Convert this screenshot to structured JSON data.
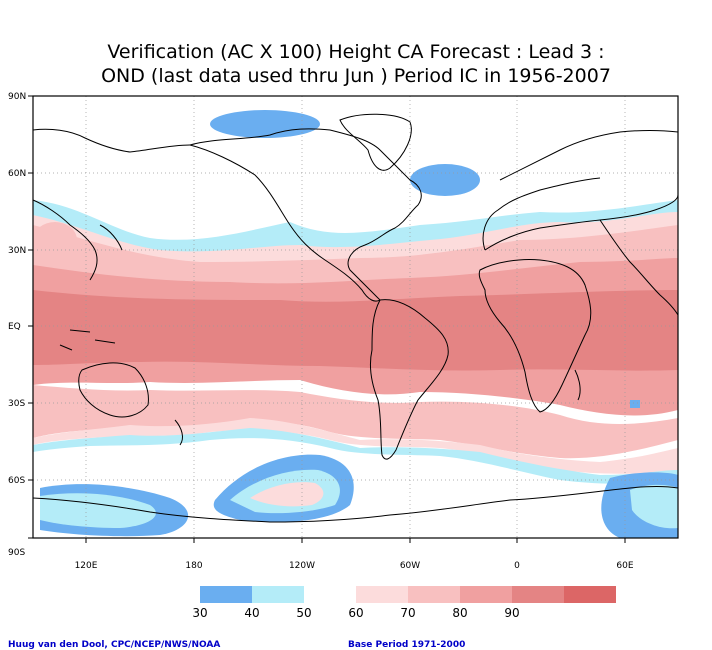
{
  "title": {
    "line1": "Verification (AC X 100) Height CA Forecast : Lead 3 :",
    "line2": "OND (last data used thru Jun ) Period IC in 1956-2007"
  },
  "lat_labels": [
    "90N",
    "60N",
    "30N",
    "EQ",
    "30S",
    "60S",
    "90S"
  ],
  "lon_labels": [
    "120E",
    "180",
    "120W",
    "60W",
    "0",
    "60E"
  ],
  "colorbar": {
    "labels": [
      "30",
      "40",
      "50",
      "60",
      "70",
      "80",
      "90"
    ],
    "colors": [
      "#6aaef0",
      "#b4ecf8",
      "#ffffff",
      "#fcdcdc",
      "#f8c0c0",
      "#f0a0a0",
      "#e48484",
      "#dc6666"
    ]
  },
  "palette": {
    "c30": "#6aaef0",
    "c40": "#b4ecf8",
    "c60": "#fcdcdc",
    "c70": "#f8c0c0",
    "c80": "#f0a0a0",
    "c90": "#e48484"
  },
  "footer": {
    "left": "Huug van den Dool, CPC/NCEP/NWS/NOAA",
    "right": "Base Period 1971-2000"
  }
}
